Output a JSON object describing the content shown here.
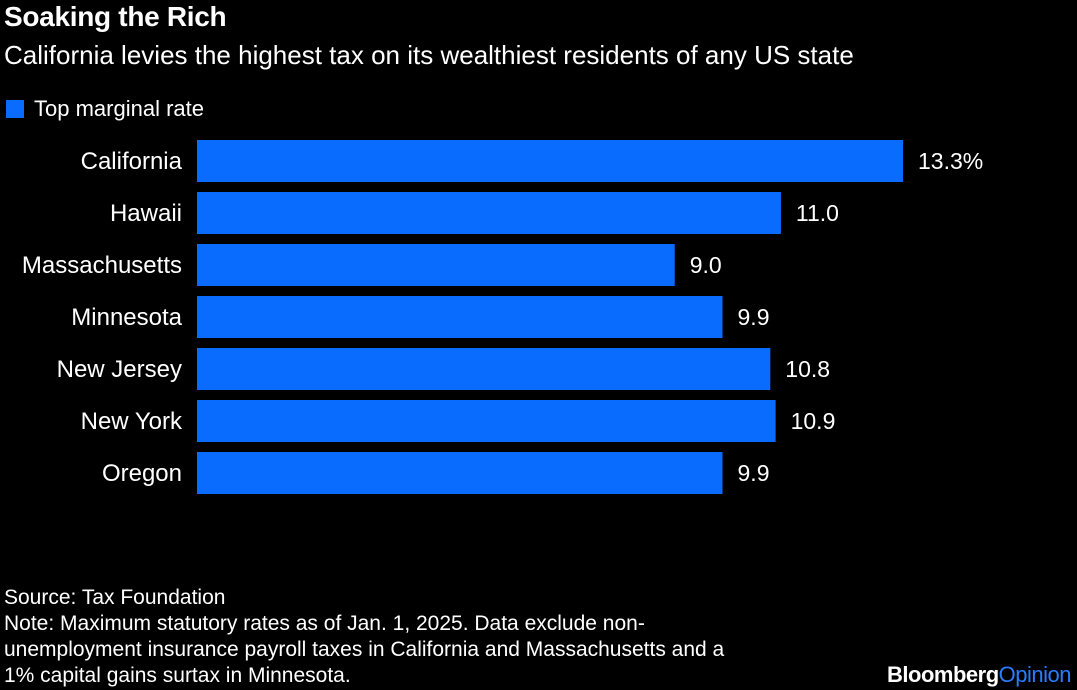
{
  "title": "Soaking the Rich",
  "subtitle": "California levies the highest tax on its wealthiest residents of any US state",
  "legend": {
    "label": "Top marginal rate"
  },
  "colors": {
    "bar": "#0a6cff",
    "background": "#000000",
    "text": "#ffffff",
    "brand_accent": "#2b7bff"
  },
  "chart_data": {
    "type": "bar",
    "orientation": "horizontal",
    "categories": [
      "California",
      "Hawaii",
      "Massachusetts",
      "Minnesota",
      "New Jersey",
      "New York",
      "Oregon"
    ],
    "series": [
      {
        "name": "Top marginal rate",
        "values": [
          13.3,
          11.0,
          9.0,
          9.9,
          10.8,
          10.9,
          9.9
        ]
      }
    ],
    "value_labels": [
      "13.3%",
      "11.0",
      "9.0",
      "9.9",
      "10.8",
      "10.9",
      "9.9"
    ],
    "xlim": [
      0,
      13.3
    ],
    "grid": false,
    "legend_position": "top-left"
  },
  "footer": {
    "source": "Source: Tax Foundation",
    "note_lines": [
      "Note: Maximum statutory rates as of Jan. 1, 2025. Data exclude non-",
      "unemployment insurance payroll taxes in California and Massachusetts and a",
      "1% capital gains surtax in Minnesota."
    ]
  },
  "brand": {
    "part1": "Bloomberg",
    "part2": "Opinion"
  }
}
